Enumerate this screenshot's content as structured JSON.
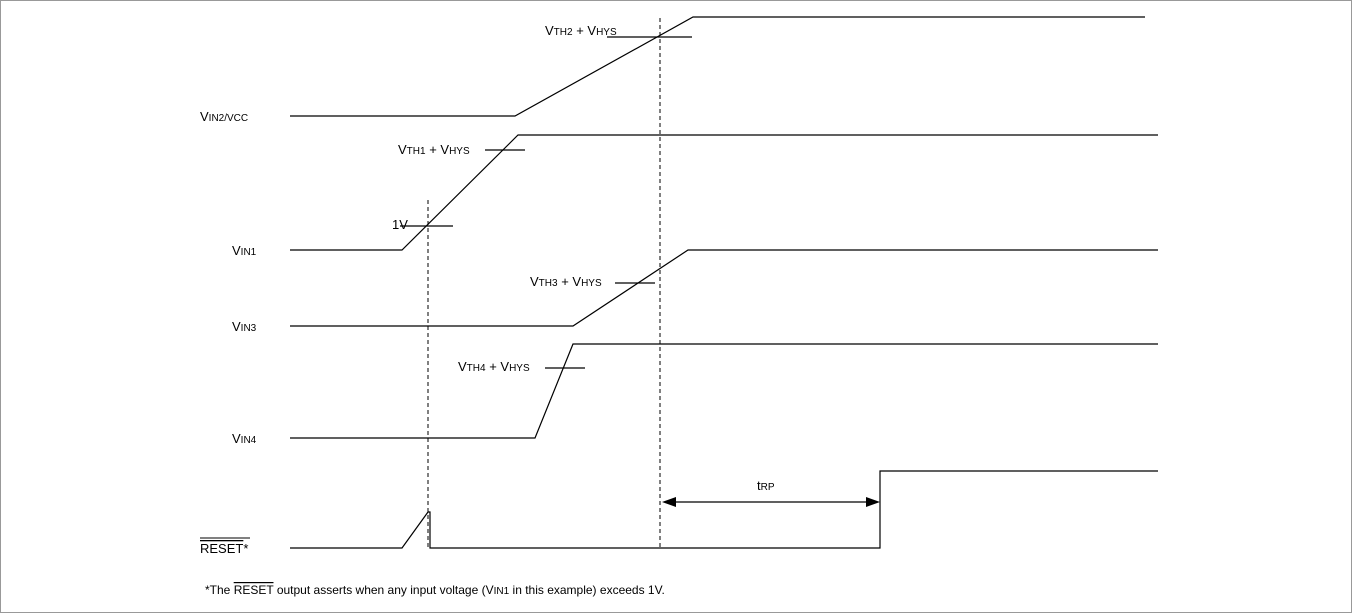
{
  "signals": [
    {
      "base": "V",
      "sub": "IN2/VCC"
    },
    {
      "base": "V",
      "sub": "IN1"
    },
    {
      "base": "V",
      "sub": "IN3"
    },
    {
      "base": "V",
      "sub": "IN4"
    },
    {
      "overline": "RESET",
      "suffix": "*"
    }
  ],
  "thresholds": [
    {
      "base": "V",
      "sub": "TH2",
      "mid": " + V",
      "sub2": "HYS"
    },
    {
      "base": "V",
      "sub": "TH1",
      "mid": " + V",
      "sub2": "HYS"
    },
    {
      "text": "1V"
    },
    {
      "base": "V",
      "sub": "TH3",
      "mid": " + V",
      "sub2": "HYS"
    },
    {
      "base": "V",
      "sub": "TH4",
      "mid": " + V",
      "sub2": "HYS"
    }
  ],
  "timing": {
    "base": "t",
    "sub": "RP"
  },
  "footnote": {
    "prefix": "*The ",
    "overline": "RESET",
    "middle": " output asserts when any input voltage (V",
    "sub": "IN1",
    "suffix": " in this example) exceeds 1V."
  }
}
